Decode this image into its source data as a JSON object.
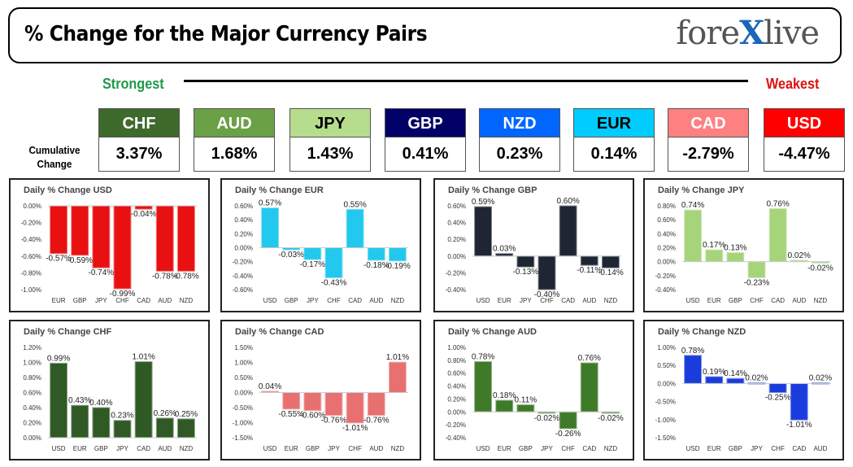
{
  "header": {
    "title": "% Change for the Major Currency Pairs",
    "logo": {
      "part1": "fore",
      "part2": "X",
      "part3": "live"
    }
  },
  "strength": {
    "strongest_label": "Strongest",
    "weakest_label": "Weakest",
    "cumulative_label_line1": "Cumulative",
    "cumulative_label_line2": "Change",
    "currencies": [
      {
        "name": "CHF",
        "value": "3.37%",
        "color": "#3e6a2c",
        "text_color": "#ffffff"
      },
      {
        "name": "AUD",
        "value": "1.68%",
        "color": "#6aa046",
        "text_color": "#ffffff"
      },
      {
        "name": "JPY",
        "value": "1.43%",
        "color": "#b6dc8e",
        "text_color": "#000000"
      },
      {
        "name": "GBP",
        "value": "0.41%",
        "color": "#000066",
        "text_color": "#ffffff"
      },
      {
        "name": "NZD",
        "value": "0.23%",
        "color": "#0066ff",
        "text_color": "#ffffff"
      },
      {
        "name": "EUR",
        "value": "0.14%",
        "color": "#00ccff",
        "text_color": "#000000"
      },
      {
        "name": "CAD",
        "value": "-2.79%",
        "color": "#ff8080",
        "text_color": "#ffffff"
      },
      {
        "name": "USD",
        "value": "-4.47%",
        "color": "#ff0000",
        "text_color": "#ffffff"
      }
    ]
  },
  "chart_data": [
    {
      "type": "bar",
      "title": "Daily % Change USD",
      "categories": [
        "EUR",
        "GBP",
        "JPY",
        "CHF",
        "CAD",
        "AUD",
        "NZD"
      ],
      "values": [
        -0.57,
        -0.59,
        -0.74,
        -0.99,
        -0.04,
        -0.78,
        -0.78
      ],
      "labels": [
        "-0.57%",
        "-0.59%",
        "-0.74%",
        "-0.99%",
        "-0.04%",
        "-0.78%",
        "-0.78%"
      ],
      "ylim": [
        -1.0,
        0.0
      ],
      "yticks": [
        "0.00%",
        "-0.20%",
        "-0.40%",
        "-0.60%",
        "-0.80%",
        "-1.00%"
      ],
      "bar_color": "#e81010"
    },
    {
      "type": "bar",
      "title": "Daily % Change EUR",
      "categories": [
        "USD",
        "GBP",
        "JPY",
        "CHF",
        "CAD",
        "AUD",
        "NZD"
      ],
      "values": [
        0.57,
        -0.03,
        -0.17,
        -0.43,
        0.55,
        -0.18,
        -0.19
      ],
      "labels": [
        "0.57%",
        "-0.03%",
        "-0.17%",
        "-0.43%",
        "0.55%",
        "-0.18%",
        "-0.19%"
      ],
      "ylim": [
        -0.6,
        0.6
      ],
      "yticks": [
        "0.60%",
        "0.40%",
        "0.20%",
        "0.00%",
        "-0.20%",
        "-0.40%",
        "-0.60%"
      ],
      "bar_color": "#22c8ee"
    },
    {
      "type": "bar",
      "title": "Daily % Change GBP",
      "categories": [
        "USD",
        "EUR",
        "JPY",
        "CHF",
        "CAD",
        "AUD",
        "NZD"
      ],
      "values": [
        0.59,
        0.03,
        -0.13,
        -0.4,
        0.6,
        -0.11,
        -0.14
      ],
      "labels": [
        "0.59%",
        "0.03%",
        "-0.13%",
        "-0.40%",
        "0.60%",
        "-0.11%",
        "-0.14%"
      ],
      "ylim": [
        -0.4,
        0.6
      ],
      "yticks": [
        "0.60%",
        "0.40%",
        "0.20%",
        "0.00%",
        "-0.20%",
        "-0.40%"
      ],
      "bar_color": "#1e2633"
    },
    {
      "type": "bar",
      "title": "Daily % Change JPY",
      "categories": [
        "USD",
        "EUR",
        "GBP",
        "CHF",
        "CAD",
        "AUD",
        "NZD"
      ],
      "values": [
        0.74,
        0.17,
        0.13,
        -0.23,
        0.76,
        0.02,
        -0.02
      ],
      "labels": [
        "0.74%",
        "0.17%",
        "0.13%",
        "-0.23%",
        "0.76%",
        "0.02%",
        "-0.02%"
      ],
      "ylim": [
        -0.4,
        0.8
      ],
      "yticks": [
        "0.80%",
        "0.60%",
        "0.40%",
        "0.20%",
        "0.00%",
        "-0.20%",
        "-0.40%"
      ],
      "bar_color": "#a6d47a"
    },
    {
      "type": "bar",
      "title": "Daily % Change CHF",
      "categories": [
        "USD",
        "EUR",
        "GBP",
        "JPY",
        "CAD",
        "AUD",
        "NZD"
      ],
      "values": [
        0.99,
        0.43,
        0.4,
        0.23,
        1.01,
        0.26,
        0.25
      ],
      "labels": [
        "0.99%",
        "0.43%",
        "0.40%",
        "0.23%",
        "1.01%",
        "0.26%",
        "0.25%"
      ],
      "ylim": [
        0.0,
        1.2
      ],
      "yticks": [
        "1.20%",
        "1.00%",
        "0.80%",
        "0.60%",
        "0.40%",
        "0.20%",
        "0.00%"
      ],
      "bar_color": "#2f5a25"
    },
    {
      "type": "bar",
      "title": "Daily % Change CAD",
      "categories": [
        "USD",
        "EUR",
        "GBP",
        "JPY",
        "CHF",
        "AUD",
        "NZD"
      ],
      "values": [
        0.04,
        -0.55,
        -0.6,
        -0.76,
        -1.01,
        -0.76,
        1.01
      ],
      "labels": [
        "0.04%",
        "-0.55%",
        "-0.60%",
        "-0.76%",
        "-1.01%",
        "-0.76%",
        "1.01%"
      ],
      "ylim": [
        -1.5,
        1.5
      ],
      "yticks": [
        "1.50%",
        "1.00%",
        "0.50%",
        "0.00%",
        "-0.50%",
        "-1.00%",
        "-1.50%"
      ],
      "bar_color": "#e87070"
    },
    {
      "type": "bar",
      "title": "Daily % Change AUD",
      "categories": [
        "USD",
        "EUR",
        "GBP",
        "JPY",
        "CHF",
        "CAD",
        "NZD"
      ],
      "values": [
        0.78,
        0.18,
        0.11,
        -0.02,
        -0.26,
        0.76,
        -0.02
      ],
      "labels": [
        "0.78%",
        "0.18%",
        "0.11%",
        "-0.02%",
        "-0.26%",
        "0.76%",
        "-0.02%"
      ],
      "ylim": [
        -0.4,
        1.0
      ],
      "yticks": [
        "1.00%",
        "0.80%",
        "0.60%",
        "0.40%",
        "0.20%",
        "0.00%",
        "-0.20%",
        "-0.40%"
      ],
      "bar_color": "#3f7a28"
    },
    {
      "type": "bar",
      "title": "Daily % Change NZD",
      "categories": [
        "USD",
        "EUR",
        "GBP",
        "JPY",
        "CHF",
        "CAD",
        "AUD"
      ],
      "values": [
        0.78,
        0.19,
        0.14,
        0.02,
        -0.25,
        -1.01,
        0.02
      ],
      "labels": [
        "0.78%",
        "0.19%",
        "0.14%",
        "0.02%",
        "-0.25%",
        "-1.01%",
        "0.02%"
      ],
      "ylim": [
        -1.5,
        1.0
      ],
      "yticks": [
        "1.00%",
        "0.50%",
        "0.00%",
        "-0.50%",
        "-1.00%",
        "-1.50%"
      ],
      "bar_color": "#1a3cdc"
    }
  ]
}
